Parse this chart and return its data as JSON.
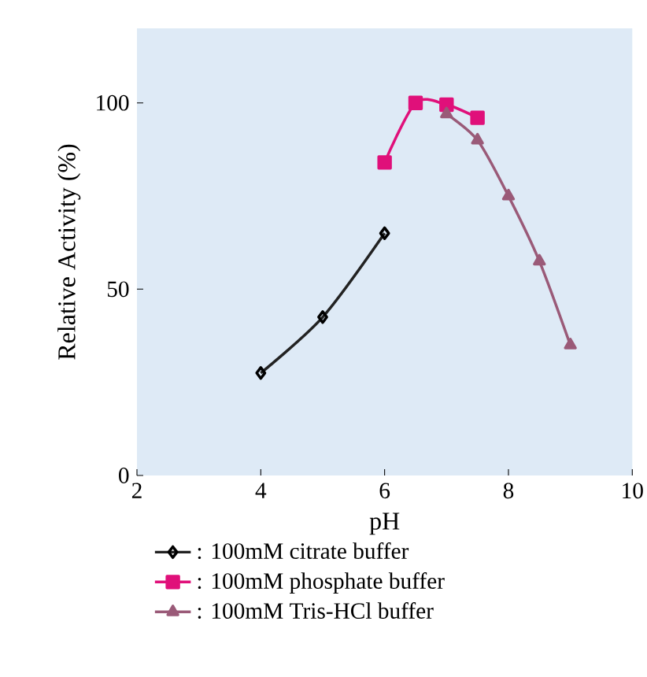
{
  "chart_data": {
    "type": "line",
    "xlabel": "pH",
    "ylabel": "Relative Activity (%)",
    "xlim": [
      2,
      10
    ],
    "ylim": [
      0,
      120
    ],
    "xticks": [
      2,
      4,
      6,
      8,
      10
    ],
    "yticks": [
      0,
      50,
      100
    ],
    "legend": "bottom",
    "grid": false,
    "series": [
      {
        "name": ": 100mM citrate buffer",
        "color": "#222222",
        "marker": "diamond",
        "x": [
          4,
          5,
          6
        ],
        "values": [
          27.5,
          42.5,
          65
        ]
      },
      {
        "name": ": 100mM phosphate buffer",
        "color": "#e0107a",
        "marker": "square",
        "x": [
          6,
          6.5,
          7,
          7.5
        ],
        "values": [
          84,
          100,
          99.5,
          96
        ]
      },
      {
        "name": ": 100mM Tris-HCl buffer",
        "color": "#9a5a78",
        "marker": "triangle",
        "x": [
          7,
          7.5,
          8,
          8.5,
          9
        ],
        "values": [
          97,
          90,
          75,
          57.5,
          35
        ]
      }
    ]
  }
}
